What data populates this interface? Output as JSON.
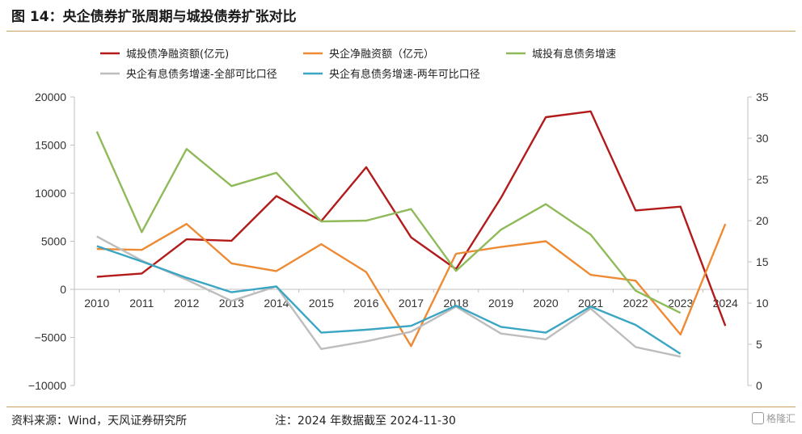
{
  "header": {
    "title": "图 14：央企债券扩张周期与城投债券扩张对比"
  },
  "footer": {
    "source": "资料来源：Wind，天风证券研究所",
    "note": "注：2024 年数据截至 2024-11-30",
    "watermark": "格隆汇"
  },
  "chart_data": {
    "type": "line",
    "categories": [
      "2010",
      "2011",
      "2012",
      "2013",
      "2014",
      "2015",
      "2016",
      "2017",
      "2018",
      "2019",
      "2020",
      "2021",
      "2022",
      "2023",
      "2024"
    ],
    "y_left": {
      "min": -10000,
      "max": 20000,
      "ticks": [
        20000,
        15000,
        10000,
        5000,
        0,
        -5000,
        -10000
      ],
      "tick_labels": [
        "20000",
        "15000",
        "10000",
        "5000",
        "0",
        "−5000",
        "−10000"
      ]
    },
    "y_right": {
      "min": 0,
      "max": 35,
      "ticks": [
        35,
        30,
        25,
        20,
        15,
        10,
        5,
        0
      ],
      "tick_labels": [
        "35",
        "30",
        "25",
        "20",
        "15",
        "10",
        "5",
        "0"
      ]
    },
    "legend_position": "top",
    "series": [
      {
        "name": "城投债净融资额(亿元)",
        "axis": "left",
        "color": "#b31b1b",
        "values": [
          1300,
          1650,
          5200,
          5050,
          9700,
          7100,
          12700,
          5400,
          2100,
          9500,
          17900,
          18500,
          8200,
          8600,
          -3800
        ]
      },
      {
        "name": "央企净融资额（亿元）",
        "axis": "left",
        "color": "#ee8a33",
        "values": [
          4200,
          4100,
          6800,
          2700,
          1900,
          4700,
          1800,
          -5900,
          3700,
          4400,
          5000,
          1500,
          900,
          -4700,
          6800
        ]
      },
      {
        "name": "城投有息债务增速",
        "axis": "right",
        "color": "#8fba5a",
        "values": [
          30.8,
          18.6,
          28.7,
          24.2,
          25.8,
          19.9,
          20.0,
          21.4,
          13.9,
          18.9,
          22.0,
          18.3,
          11.5,
          8.8,
          null
        ]
      },
      {
        "name": "央企有息债务增速-全部可比口径",
        "axis": "left",
        "color": "#bdbdbd",
        "values": [
          5500,
          3000,
          1000,
          -1200,
          300,
          -6200,
          -5400,
          -4400,
          -1800,
          -4600,
          -5200,
          -2000,
          -6000,
          -7000,
          null
        ]
      },
      {
        "name": "央企有息债务增速-两年可比口径",
        "axis": "left",
        "color": "#3ba5c4",
        "values": [
          4500,
          2900,
          1200,
          -300,
          300,
          -4500,
          -4200,
          -3800,
          -1700,
          -3900,
          -4500,
          -1800,
          -3700,
          -6700,
          null
        ]
      }
    ]
  }
}
